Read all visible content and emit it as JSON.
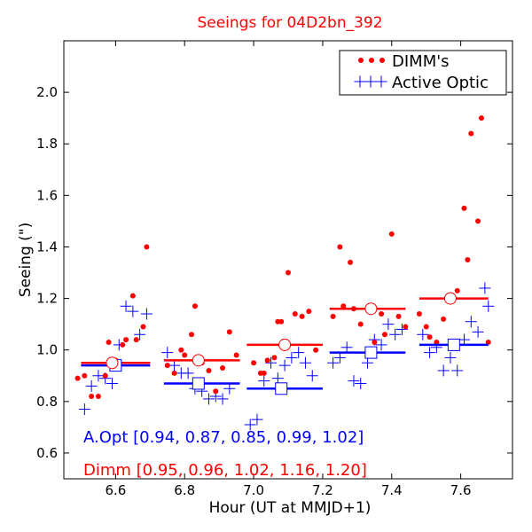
{
  "chart_data": {
    "type": "scatter",
    "title": "Seeings for 04D2bn_392",
    "xlabel": "Hour (UT at MMJD+1)",
    "ylabel": "Seeing (\")",
    "xlim": [
      6.45,
      7.75
    ],
    "ylim": [
      0.5,
      2.2
    ],
    "xticks": [
      6.6,
      6.8,
      7.0,
      7.2,
      7.4,
      7.6
    ],
    "xtick_labels": [
      "6.6",
      "6.8",
      "7.0",
      "7.2",
      "7.4",
      "7.6"
    ],
    "yticks": [
      0.6,
      0.8,
      1.0,
      1.2,
      1.4,
      1.6,
      1.8,
      2.0
    ],
    "ytick_labels": [
      "0.6",
      "0.8",
      "1.0",
      "1.2",
      "1.4",
      "1.6",
      "1.8",
      "2.0"
    ],
    "legend": {
      "position": "top-right",
      "entries": [
        {
          "label": "DIMM's",
          "color": "#ff0000",
          "marker": "dot"
        },
        {
          "label": "Active Optic",
          "color": "#0000ff",
          "marker": "plus"
        }
      ]
    },
    "colors": {
      "dimm": "#ff0000",
      "active_optic": "#0000ff"
    },
    "series": [
      {
        "name": "DIMM's",
        "marker": "dot",
        "color": "#ff0000",
        "x": [
          6.49,
          6.51,
          6.53,
          6.55,
          6.57,
          6.58,
          6.6,
          6.62,
          6.63,
          6.65,
          6.66,
          6.68,
          6.69,
          6.75,
          6.77,
          6.79,
          6.8,
          6.82,
          6.83,
          6.85,
          6.87,
          6.89,
          6.91,
          6.93,
          6.95,
          7.0,
          7.02,
          7.03,
          7.04,
          7.06,
          7.07,
          7.08,
          7.1,
          7.12,
          7.14,
          7.16,
          7.18,
          7.23,
          7.25,
          7.26,
          7.28,
          7.29,
          7.31,
          7.33,
          7.35,
          7.37,
          7.38,
          7.4,
          7.42,
          7.44,
          7.48,
          7.5,
          7.51,
          7.53,
          7.55,
          7.57,
          7.59,
          7.61,
          7.62,
          7.63,
          7.65,
          7.66,
          7.68
        ],
        "y": [
          0.89,
          0.9,
          0.82,
          0.82,
          0.9,
          1.03,
          0.96,
          1.02,
          1.04,
          1.21,
          1.04,
          1.09,
          1.4,
          0.94,
          0.91,
          1.0,
          0.98,
          1.06,
          1.17,
          0.95,
          0.92,
          0.84,
          0.93,
          1.07,
          0.98,
          0.95,
          0.91,
          0.91,
          0.96,
          0.97,
          1.11,
          1.11,
          1.3,
          1.14,
          1.13,
          1.15,
          1.0,
          1.13,
          1.4,
          1.17,
          1.34,
          1.16,
          1.1,
          1.16,
          1.03,
          1.14,
          1.06,
          1.45,
          1.13,
          1.09,
          1.14,
          1.09,
          1.05,
          1.03,
          1.12,
          1.21,
          1.23,
          1.55,
          1.35,
          1.84,
          1.5,
          1.9,
          1.03
        ]
      },
      {
        "name": "Active Optic",
        "marker": "plus",
        "color": "#0000ff",
        "x": [
          6.51,
          6.53,
          6.55,
          6.57,
          6.59,
          6.61,
          6.63,
          6.65,
          6.67,
          6.69,
          6.75,
          6.77,
          6.79,
          6.81,
          6.83,
          6.85,
          6.87,
          6.89,
          6.91,
          6.93,
          6.99,
          7.01,
          7.03,
          7.05,
          7.07,
          7.09,
          7.11,
          7.13,
          7.15,
          7.17,
          7.23,
          7.25,
          7.27,
          7.29,
          7.31,
          7.33,
          7.35,
          7.37,
          7.39,
          7.41,
          7.43,
          7.49,
          7.51,
          7.53,
          7.55,
          7.57,
          7.59,
          7.61,
          7.63,
          7.65,
          7.67,
          7.68
        ],
        "y": [
          0.77,
          0.86,
          0.9,
          0.89,
          0.87,
          1.02,
          1.17,
          1.15,
          1.06,
          1.14,
          0.99,
          0.94,
          0.91,
          0.91,
          0.85,
          0.84,
          0.81,
          0.82,
          0.81,
          0.85,
          0.71,
          0.73,
          0.88,
          0.95,
          0.89,
          0.94,
          0.97,
          0.99,
          0.95,
          0.9,
          0.95,
          0.97,
          1.01,
          0.88,
          0.87,
          0.95,
          1.04,
          1.02,
          1.1,
          1.06,
          1.08,
          1.06,
          0.99,
          1.01,
          0.92,
          0.97,
          0.92,
          1.04,
          1.11,
          1.07,
          1.24,
          1.17
        ]
      }
    ],
    "bins": [
      {
        "x_range": [
          6.5,
          6.7
        ],
        "dimm_mean": 0.95,
        "aopt_mean": 0.94,
        "dimm_marker_x": 6.59,
        "aopt_marker_x": 6.6
      },
      {
        "x_range": [
          6.74,
          6.96
        ],
        "dimm_mean": 0.96,
        "aopt_mean": 0.87,
        "dimm_marker_x": 6.84,
        "aopt_marker_x": 6.84
      },
      {
        "x_range": [
          6.98,
          7.2
        ],
        "dimm_mean": 1.02,
        "aopt_mean": 0.85,
        "dimm_marker_x": 7.09,
        "aopt_marker_x": 7.08
      },
      {
        "x_range": [
          7.22,
          7.44
        ],
        "dimm_mean": 1.16,
        "aopt_mean": 0.99,
        "dimm_marker_x": 7.34,
        "aopt_marker_x": 7.34
      },
      {
        "x_range": [
          7.48,
          7.68
        ],
        "dimm_mean": 1.2,
        "aopt_mean": 1.02,
        "dimm_marker_x": 7.57,
        "aopt_marker_x": 7.58
      }
    ],
    "annotations": [
      {
        "text": "A.Opt [0.94, 0.87, 0.85, 0.99, 1.02]",
        "color": "#0000ff"
      },
      {
        "text": "Dimm [0.95, 0.96, 1.02, 1.16, 1.20]",
        "color": "#ff0000"
      }
    ]
  }
}
